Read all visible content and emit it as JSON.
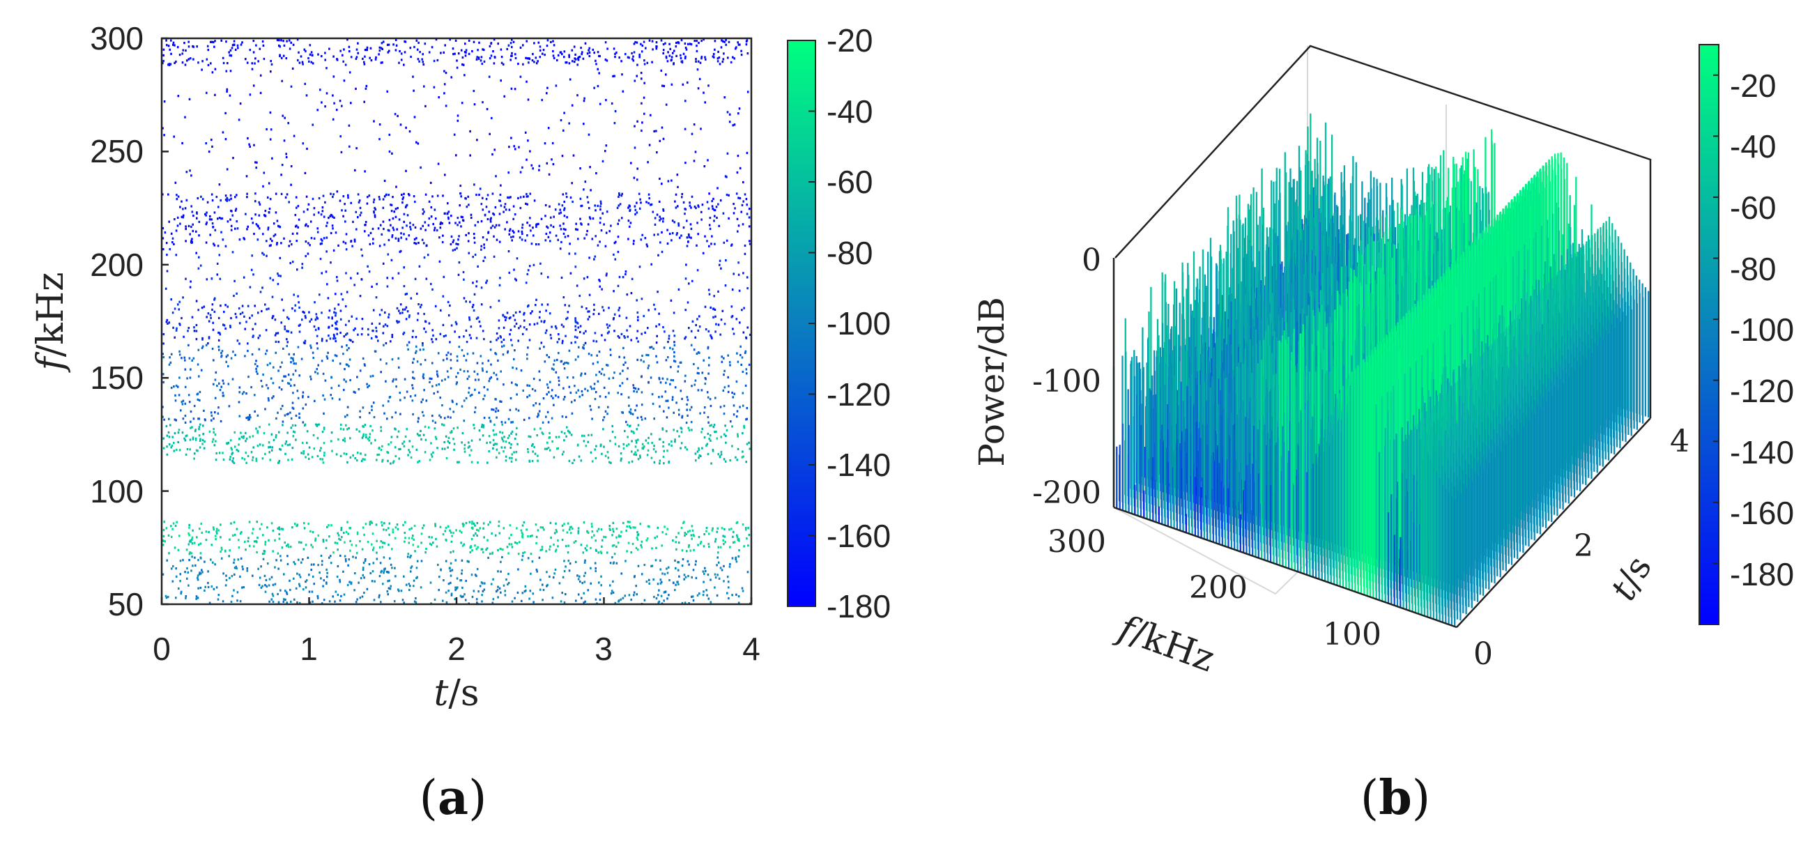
{
  "colors": {
    "high": "#00ff7f",
    "low": "#0000ff",
    "mid": "#0a7fbf"
  },
  "chart_data": [
    {
      "type": "heatmap",
      "panel_label": "(a)",
      "panel_letter": "a",
      "xlabel": "t/s",
      "xlabel_var": "t",
      "xlabel_unit": "/s",
      "ylabel": "f/kHz",
      "ylabel_var": "f",
      "ylabel_unit": "/kHz",
      "xlim": [
        0,
        4
      ],
      "ylim": [
        50,
        300
      ],
      "xticks": [
        "0",
        "1",
        "2",
        "3",
        "4"
      ],
      "yticks": [
        "300",
        "250",
        "200",
        "150",
        "100",
        "50"
      ],
      "colorbar": {
        "range": [
          -180,
          -20
        ],
        "ticks": [
          "-20",
          "-40",
          "-60",
          "-80",
          "-100",
          "-120",
          "-140",
          "-160",
          "-180"
        ]
      },
      "bands": [
        {
          "f_min": 288,
          "f_max": 300,
          "level_db": -178,
          "density": 0.85
        },
        {
          "f_min": 232,
          "f_max": 288,
          "level_db": -178,
          "density": 0.12
        },
        {
          "f_min": 208,
          "f_max": 232,
          "level_db": -172,
          "density": 0.7
        },
        {
          "f_min": 183,
          "f_max": 208,
          "level_db": -160,
          "density": 0.2
        },
        {
          "f_min": 165,
          "f_max": 183,
          "level_db": -158,
          "density": 0.6
        },
        {
          "f_min": 130,
          "f_max": 165,
          "level_db": -120,
          "density": 0.5
        },
        {
          "f_min": 112,
          "f_max": 130,
          "level_db": -60,
          "density": 0.75
        },
        {
          "f_min": 87,
          "f_max": 112,
          "level_db": -180,
          "density": 0
        },
        {
          "f_min": 72,
          "f_max": 87,
          "level_db": -50,
          "density": 0.8
        },
        {
          "f_min": 50,
          "f_max": 72,
          "level_db": -100,
          "density": 0.6
        }
      ]
    },
    {
      "type": "surface3d",
      "panel_label": "(b)",
      "panel_letter": "b",
      "xlabel": "f/kHz",
      "xlabel_var": "f",
      "xlabel_unit": "/kHz",
      "ylabel": "t/s",
      "ylabel_var": "t",
      "ylabel_unit": "/s",
      "zlabel": "Power/dB",
      "xlim": [
        50,
        300
      ],
      "ylim": [
        0,
        4
      ],
      "zlim": [
        -200,
        0
      ],
      "xticks": [
        "300",
        "200",
        "100"
      ],
      "yticks": [
        "0",
        "2",
        "4"
      ],
      "zticks": [
        "0",
        "-100",
        "-200"
      ],
      "colorbar": {
        "range": [
          -200,
          -10
        ],
        "ticks": [
          "-20",
          "-40",
          "-60",
          "-80",
          "-100",
          "-120",
          "-140",
          "-160",
          "-180"
        ]
      },
      "profile": {
        "f_khz": [
          300,
          280,
          260,
          240,
          220,
          200,
          180,
          160,
          150,
          140,
          130,
          120,
          115,
          110,
          100,
          90,
          85,
          80,
          70,
          60,
          50
        ],
        "power_db": [
          -180,
          -182,
          -190,
          -195,
          -190,
          -170,
          -150,
          -130,
          -90,
          -60,
          -30,
          -15,
          -12,
          -20,
          -190,
          -170,
          -60,
          -50,
          -70,
          -90,
          -100
        ]
      },
      "peak_power_db": -12
    }
  ]
}
